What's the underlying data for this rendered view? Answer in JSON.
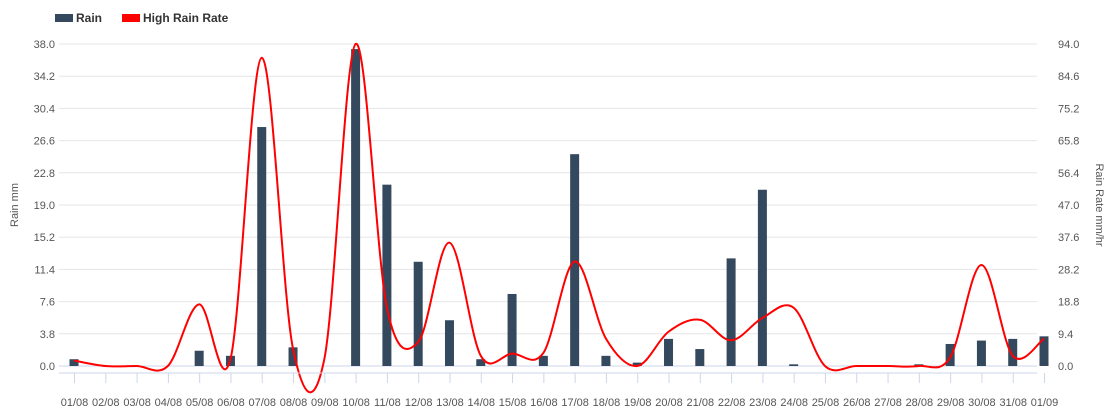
{
  "chart_data": {
    "type": "bar",
    "legend_position": "top-left",
    "grid": true,
    "categories": [
      "01/08",
      "02/08",
      "03/08",
      "04/08",
      "05/08",
      "06/08",
      "07/08",
      "08/08",
      "09/08",
      "10/08",
      "11/08",
      "12/08",
      "13/08",
      "14/08",
      "15/08",
      "16/08",
      "17/08",
      "18/08",
      "19/08",
      "20/08",
      "21/08",
      "22/08",
      "23/08",
      "24/08",
      "25/08",
      "26/08",
      "27/08",
      "28/08",
      "29/08",
      "30/08",
      "31/08",
      "01/09"
    ],
    "series": [
      {
        "name": "Rain",
        "type": "bar",
        "axis": "left",
        "color": "#34495e",
        "values": [
          0.8,
          0.0,
          0.0,
          0.0,
          1.8,
          1.2,
          28.2,
          2.2,
          0.0,
          37.4,
          21.4,
          12.3,
          5.4,
          0.8,
          8.5,
          1.2,
          25.0,
          1.2,
          0.4,
          3.2,
          2.0,
          12.7,
          20.8,
          0.2,
          0.0,
          0.0,
          0.0,
          0.2,
          2.6,
          3.0,
          3.2,
          3.5
        ]
      },
      {
        "name": "High Rain Rate",
        "type": "line",
        "axis": "right",
        "color": "#ff0000",
        "values": [
          1.6,
          0.0,
          0.0,
          0.0,
          18.0,
          2.0,
          90.0,
          5.0,
          2.0,
          94.0,
          17.0,
          7.0,
          36.0,
          3.0,
          3.6,
          3.8,
          30.5,
          8.0,
          0.0,
          10.0,
          13.5,
          7.5,
          14.0,
          17.0,
          0.0,
          0.0,
          0.0,
          0.0,
          2.5,
          29.5,
          3.0,
          8.0
        ]
      }
    ],
    "left_axis": {
      "label": "Rain mm",
      "ylim": [
        0,
        38.0
      ],
      "ticks": [
        "0.0",
        "3.8",
        "7.6",
        "11.4",
        "15.2",
        "19.0",
        "22.8",
        "26.6",
        "30.4",
        "34.2",
        "38.0"
      ]
    },
    "right_axis": {
      "label": "Rain Rate mm/hr",
      "ylim": [
        0,
        94.0
      ],
      "ticks": [
        "0.0",
        "9.4",
        "18.8",
        "28.2",
        "37.6",
        "47.0",
        "56.4",
        "65.8",
        "75.2",
        "84.6",
        "94.0"
      ]
    }
  }
}
